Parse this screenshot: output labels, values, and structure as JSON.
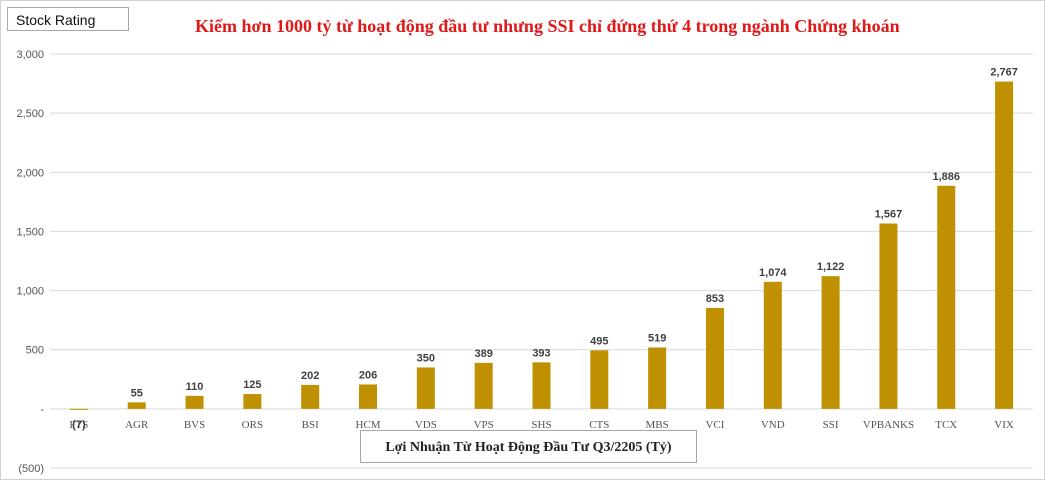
{
  "badge": "Stock Rating",
  "chart_data": {
    "type": "bar",
    "title": "Kiếm hơn 1000 tỷ từ hoạt động đầu tư nhưng SSI chỉ đứng thứ 4 trong ngành Chứng khoán",
    "xlabel": "Lợi Nhuận Từ Hoạt Động Đầu Tư Q3/2205 (Tỷ)",
    "ylabel": "",
    "categories": [
      "FTS",
      "AGR",
      "BVS",
      "ORS",
      "BSI",
      "HCM",
      "VDS",
      "VPS",
      "SHS",
      "CTS",
      "MBS",
      "VCI",
      "VND",
      "SSI",
      "VPBANKS",
      "TCX",
      "VIX"
    ],
    "values": [
      -7,
      55,
      110,
      125,
      202,
      206,
      350,
      389,
      393,
      495,
      519,
      853,
      1074,
      1122,
      1567,
      1886,
      2767
    ],
    "value_labels": [
      "(7)",
      "55",
      "110",
      "125",
      "202",
      "206",
      "350",
      "389",
      "393",
      "495",
      "519",
      "853",
      "1,074",
      "1,122",
      "1,567",
      "1,886",
      "2,767"
    ],
    "ylim": [
      -500,
      3000
    ],
    "y_ticks": [
      -500,
      0,
      500,
      1000,
      1500,
      2000,
      2500,
      3000
    ],
    "y_tick_labels": [
      "(500)",
      "-",
      "500",
      "1,000",
      "1,500",
      "2,000",
      "2,500",
      "3,000"
    ],
    "grid": true,
    "bar_color": "#bf9000"
  }
}
